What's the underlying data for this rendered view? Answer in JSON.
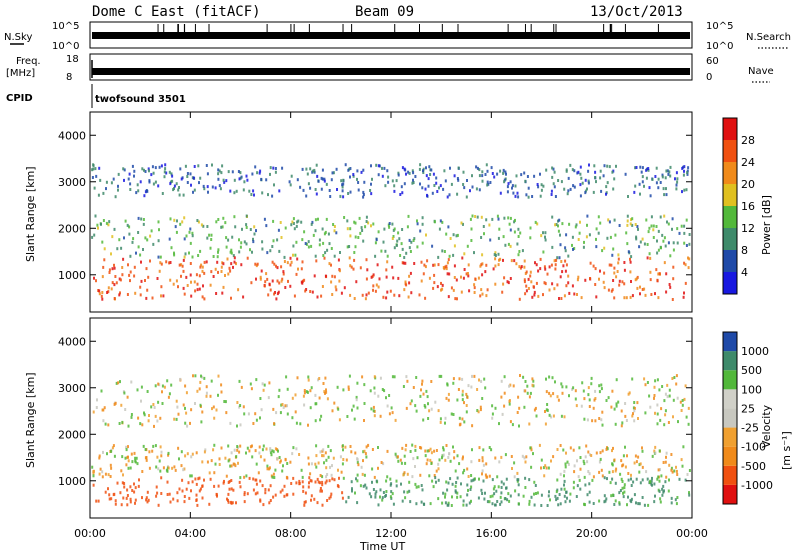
{
  "header": {
    "station": "Dome C East (fitACF)",
    "beam": "Beam 09",
    "date": "13/Oct/2013"
  },
  "side_labels": {
    "nsky": "N.Sky",
    "freq_line1": "Freq.",
    "freq_line2": "[MHz]",
    "cpid": "CPID",
    "nsearch": "N.Search",
    "nave": "Nave"
  },
  "small_panel_ticks": {
    "nsky_top": "10^5",
    "nsky_bottom": "10^0",
    "nsearch_top": "10^5",
    "nsearch_bottom": "10^0",
    "freq_top": "18",
    "freq_bottom": "8",
    "nave_top": "60",
    "nave_bottom": "0"
  },
  "cpid_text": "twofsound 3501",
  "colors": {
    "power_scale": [
      "#1818e0",
      "#1f4aa8",
      "#3e8a6a",
      "#52b83a",
      "#e0c020",
      "#f08a1a",
      "#f05010",
      "#e01010"
    ],
    "velocity_scale": [
      "#e01010",
      "#f05010",
      "#f08a1a",
      "#f0a030",
      "#c8c8c0",
      "#d0d0c8",
      "#52b83a",
      "#3e8a6a",
      "#1f4aa8"
    ]
  },
  "chart_data": [
    {
      "type": "heatmap",
      "ylabel": "Slant Range [km]",
      "ytick_labels": [
        "1000",
        "2000",
        "3000",
        "4000"
      ],
      "ylim": [
        200,
        4500
      ],
      "xlim": [
        "00:00",
        "24:00"
      ],
      "colorbar_label": "Power [dB]",
      "colorbar_ticks": [
        "4",
        "8",
        "12",
        "16",
        "20",
        "24",
        "28"
      ],
      "colorbar_range": [
        0,
        32
      ],
      "bands": [
        {
          "range_km": [
            500,
            1400
          ],
          "level": 26
        },
        {
          "range_km": [
            1400,
            2300
          ],
          "level": 12
        },
        {
          "range_km": [
            2700,
            3400
          ],
          "level": 7
        }
      ]
    },
    {
      "type": "heatmap",
      "ylabel": "Slant Range [km]",
      "ytick_labels": [
        "1000",
        "2000",
        "3000",
        "4000"
      ],
      "ylim": [
        200,
        4500
      ],
      "xlim": [
        "00:00",
        "24:00"
      ],
      "xlabel": "Time UT",
      "xtick_labels": [
        "00:00",
        "04:00",
        "08:00",
        "12:00",
        "16:00",
        "20:00",
        "00:00"
      ],
      "colorbar_label": "Velocity",
      "colorbar_unit": "[m s⁻¹]",
      "colorbar_ticks": [
        "1000",
        "500",
        "100",
        "25",
        "-25",
        "-100",
        "-500",
        "-1000"
      ],
      "bands": [
        {
          "range_km": [
            500,
            1100
          ],
          "level": -200
        },
        {
          "range_km": [
            1100,
            1800
          ],
          "level": 0
        },
        {
          "range_km": [
            2200,
            3300
          ],
          "level": 10
        }
      ]
    }
  ]
}
